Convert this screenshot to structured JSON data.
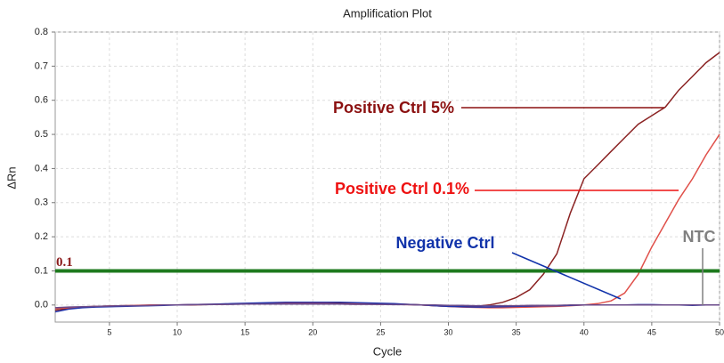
{
  "chart_data": {
    "type": "line",
    "title": "Amplification Plot",
    "x_label": "Cycle",
    "y_label": "ΔRn",
    "x": [
      1,
      2,
      3,
      4,
      5,
      6,
      7,
      8,
      9,
      10,
      11,
      12,
      13,
      14,
      15,
      16,
      17,
      18,
      19,
      20,
      21,
      22,
      23,
      24,
      25,
      26,
      27,
      28,
      29,
      30,
      31,
      32,
      33,
      34,
      35,
      36,
      37,
      38,
      39,
      40,
      41,
      42,
      43,
      44,
      45,
      46,
      47,
      48,
      49,
      50
    ],
    "series": [
      {
        "name": "Positive Ctrl 5%",
        "color": "#8b2323",
        "values": [
          -0.015,
          -0.01,
          -0.006,
          -0.004,
          -0.003,
          -0.002,
          -0.002,
          -0.001,
          0,
          0,
          0,
          0.001,
          0.002,
          0.003,
          0.003,
          0.004,
          0.004,
          0.005,
          0.005,
          0.005,
          0.005,
          0.005,
          0.005,
          0.004,
          0.004,
          0.003,
          0.002,
          0,
          -0.002,
          -0.004,
          -0.005,
          -0.004,
          0,
          0.008,
          0.022,
          0.045,
          0.09,
          0.15,
          0.27,
          0.37,
          0.41,
          0.45,
          0.49,
          0.53,
          0.555,
          0.58,
          0.63,
          0.67,
          0.71,
          0.74
        ]
      },
      {
        "name": "Positive Ctrl 0.1%",
        "color": "#e0504a",
        "values": [
          -0.01,
          -0.008,
          -0.006,
          -0.004,
          -0.003,
          -0.002,
          -0.001,
          0,
          0,
          0,
          0.001,
          0.002,
          0.002,
          0.003,
          0.003,
          0.003,
          0.004,
          0.004,
          0.004,
          0.004,
          0.004,
          0.003,
          0.003,
          0.003,
          0.002,
          0.002,
          0.001,
          0,
          -0.002,
          -0.004,
          -0.006,
          -0.007,
          -0.008,
          -0.008,
          -0.007,
          -0.006,
          -0.005,
          -0.004,
          -0.002,
          0,
          0.004,
          0.012,
          0.035,
          0.09,
          0.17,
          0.24,
          0.31,
          0.37,
          0.44,
          0.5
        ]
      },
      {
        "name": "Negative Ctrl",
        "color": "#2233aa",
        "values": [
          -0.02,
          -0.012,
          -0.008,
          -0.006,
          -0.005,
          -0.004,
          -0.003,
          -0.002,
          -0.001,
          0,
          0.001,
          0.002,
          0.003,
          0.004,
          0.005,
          0.006,
          0.007,
          0.008,
          0.008,
          0.008,
          0.008,
          0.008,
          0.007,
          0.006,
          0.005,
          0.004,
          0.002,
          0,
          -0.002,
          -0.004,
          -0.005,
          -0.006,
          -0.006,
          -0.005,
          -0.004,
          -0.003,
          -0.002,
          -0.002,
          -0.001,
          0,
          0,
          0,
          0,
          0.001,
          0.001,
          0,
          0,
          -0.001,
          0,
          0
        ]
      },
      {
        "name": "NTC",
        "color": "#6a4a8a",
        "values": [
          -0.008,
          -0.006,
          -0.005,
          -0.004,
          -0.003,
          -0.002,
          -0.002,
          -0.001,
          0,
          0,
          0.001,
          0.001,
          0.002,
          0.002,
          0.003,
          0.003,
          0.003,
          0.003,
          0.003,
          0.003,
          0.003,
          0.003,
          0.002,
          0.002,
          0.002,
          0.001,
          0.001,
          0,
          0,
          -0.001,
          -0.001,
          -0.002,
          -0.002,
          -0.002,
          -0.002,
          -0.001,
          -0.001,
          -0.001,
          0,
          0,
          0,
          0,
          0,
          0,
          0,
          0,
          0,
          0,
          0,
          0
        ]
      }
    ],
    "threshold": {
      "value": 0.1,
      "color": "#1e7a1e"
    },
    "annotation_colors": [
      "#8b1010",
      "#ee1111",
      "#1133aa",
      "#808080"
    ],
    "xlim": [
      1,
      50
    ],
    "xticks": [
      5,
      10,
      15,
      20,
      25,
      30,
      35,
      40,
      45,
      50
    ],
    "ylim": [
      -0.05,
      0.8
    ],
    "yticks": [
      {
        "value": 0,
        "label": "0.0"
      },
      0.1,
      0.2,
      0.3,
      0.4,
      0.5,
      0.6,
      0.7,
      0.8
    ],
    "grid": true
  }
}
